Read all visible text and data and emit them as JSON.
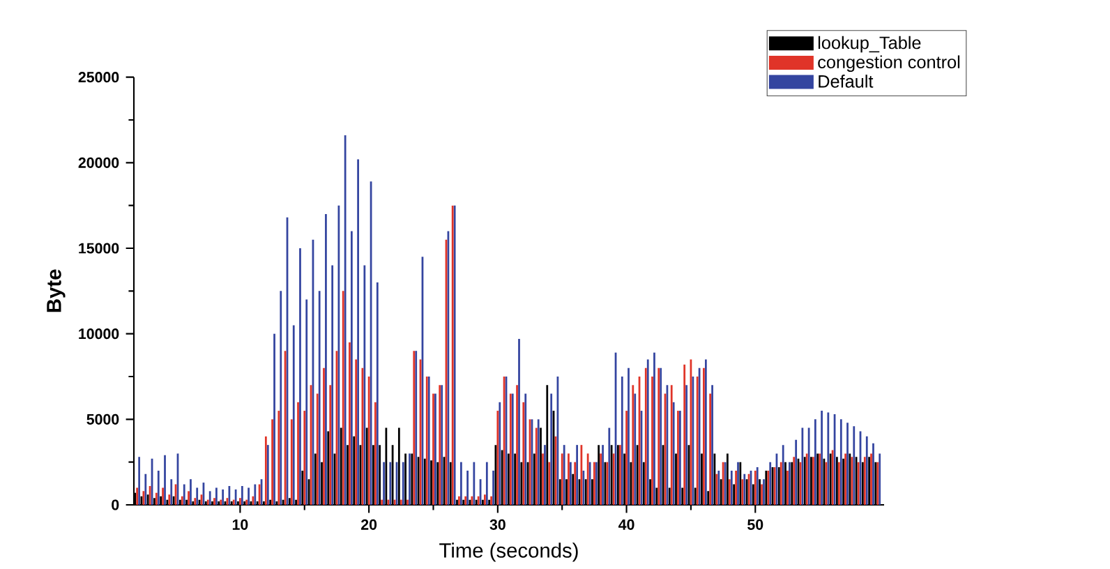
{
  "chart_data": {
    "type": "bar",
    "xlabel": "Time (seconds)",
    "ylabel": "Byte",
    "x": [
      2,
      2.5,
      3,
      3.5,
      4,
      4.5,
      5,
      5.5,
      6,
      6.5,
      7,
      7.5,
      8,
      8.5,
      9,
      9.5,
      10,
      10.5,
      11,
      11.5,
      12,
      12.5,
      13,
      13.5,
      14,
      14.5,
      15,
      15.5,
      16,
      16.5,
      17,
      17.5,
      18,
      18.5,
      19,
      19.5,
      20,
      20.5,
      21,
      21.5,
      22,
      22.5,
      23,
      23.5,
      24,
      24.5,
      25,
      25.5,
      26,
      26.5,
      27,
      27.5,
      28,
      28.5,
      29,
      29.5,
      30,
      30.5,
      31,
      31.5,
      32,
      32.5,
      33,
      33.5,
      34,
      34.5,
      35,
      35.5,
      36,
      36.5,
      37,
      37.5,
      38,
      38.5,
      39,
      39.5,
      40,
      40.5,
      41,
      41.5,
      42,
      42.5,
      43,
      43.5,
      44,
      44.5,
      45,
      45.5,
      46,
      46.5,
      47,
      47.5,
      48,
      48.5,
      49,
      49.5,
      50,
      50.5,
      51,
      51.5,
      52,
      52.5,
      53,
      53.5,
      54,
      54.5,
      55,
      55.5,
      56,
      56.5,
      57,
      57.5,
      58,
      58.5,
      59,
      59.5
    ],
    "series": [
      {
        "name": "lookup_Table",
        "color": "#000000",
        "values": [
          700,
          500,
          600,
          400,
          500,
          300,
          500,
          300,
          300,
          200,
          300,
          200,
          200,
          200,
          200,
          200,
          200,
          200,
          200,
          200,
          200,
          300,
          200,
          300,
          400,
          300,
          2000,
          1500,
          3000,
          2500,
          4300,
          3000,
          4500,
          3500,
          4000,
          3500,
          4500,
          3500,
          3500,
          4500,
          3500,
          4500,
          3000,
          3000,
          2800,
          2700,
          2600,
          2500,
          2800,
          2500,
          300,
          300,
          300,
          300,
          300,
          300,
          3500,
          3200,
          3000,
          3000,
          2500,
          2500,
          3000,
          4500,
          7000,
          5500,
          1500,
          1500,
          1800,
          1500,
          1500,
          1500,
          3500,
          2500,
          3500,
          3500,
          3000,
          2500,
          3500,
          2500,
          1500,
          1000,
          3500,
          1000,
          3000,
          1000,
          3500,
          1000,
          3000,
          800,
          3000,
          1500,
          3000,
          1200,
          2500,
          1500,
          1200,
          1500,
          2000,
          2200,
          2200,
          2500,
          2500,
          2700,
          2800,
          2800,
          3000,
          2700,
          3000,
          2800,
          2700,
          3000,
          2800,
          2500,
          2800,
          2500
        ]
      },
      {
        "name": "congestion control",
        "color": "#e03428",
        "values": [
          1000,
          800,
          1100,
          700,
          1000,
          600,
          1200,
          500,
          800,
          400,
          600,
          300,
          400,
          300,
          400,
          300,
          400,
          300,
          500,
          1200,
          4000,
          5000,
          5500,
          9000,
          5000,
          6000,
          5500,
          7000,
          6500,
          8000,
          7000,
          9000,
          12500,
          9500,
          8500,
          8000,
          7500,
          6000,
          300,
          300,
          300,
          300,
          300,
          9000,
          8500,
          7500,
          6500,
          7000,
          15500,
          17500,
          500,
          500,
          500,
          500,
          600,
          500,
          5500,
          7500,
          6500,
          7000,
          6000,
          5000,
          4500,
          3000,
          2500,
          4000,
          3000,
          3000,
          2500,
          3500,
          3000,
          2500,
          3000,
          2500,
          3000,
          3500,
          5500,
          7000,
          7500,
          8000,
          7500,
          8000,
          6500,
          7000,
          5500,
          8200,
          8500,
          7500,
          8000,
          6500,
          1800,
          2500,
          1500,
          2000,
          1500,
          1800,
          2000,
          1200,
          2000,
          2200,
          2500,
          2000,
          2800,
          2500,
          3000,
          2800,
          3000,
          2500,
          3200,
          2500,
          3000,
          2800,
          2500,
          2800,
          3000,
          2500
        ]
      },
      {
        "name": "Default",
        "color": "#3445a0",
        "values": [
          2800,
          1800,
          2700,
          2000,
          2900,
          1500,
          3000,
          1200,
          1500,
          1000,
          1300,
          800,
          1000,
          900,
          1100,
          900,
          1100,
          1000,
          1200,
          1500,
          3500,
          10000,
          12500,
          16800,
          10500,
          15000,
          12000,
          15500,
          12500,
          17000,
          14000,
          17500,
          21600,
          16000,
          20200,
          14000,
          18900,
          13000,
          2500,
          2500,
          2500,
          2500,
          3000,
          9000,
          14500,
          7500,
          6500,
          7000,
          16000,
          17500,
          2500,
          2000,
          2500,
          1500,
          2500,
          2000,
          6000,
          7500,
          6500,
          9700,
          6500,
          5000,
          5000,
          3500,
          6500,
          7500,
          3500,
          2500,
          3500,
          2000,
          2500,
          2500,
          3500,
          4500,
          8900,
          7500,
          8000,
          6500,
          5500,
          8500,
          8900,
          8000,
          7000,
          6000,
          5500,
          7000,
          7500,
          8000,
          8500,
          7000,
          2000,
          2500,
          2000,
          2500,
          1800,
          2000,
          2200,
          1500,
          2500,
          3000,
          3500,
          2500,
          3800,
          4500,
          4500,
          5000,
          5500,
          5400,
          5300,
          5000,
          4800,
          4600,
          4300,
          4000,
          3600,
          3000
        ]
      }
    ],
    "xlim": [
      1.75,
      60
    ],
    "xticks": [
      10,
      20,
      30,
      40,
      50
    ],
    "ylim": [
      0,
      25000
    ],
    "yticks": [
      0,
      5000,
      10000,
      15000,
      20000,
      25000
    ],
    "grid": false,
    "legend": "top right"
  }
}
